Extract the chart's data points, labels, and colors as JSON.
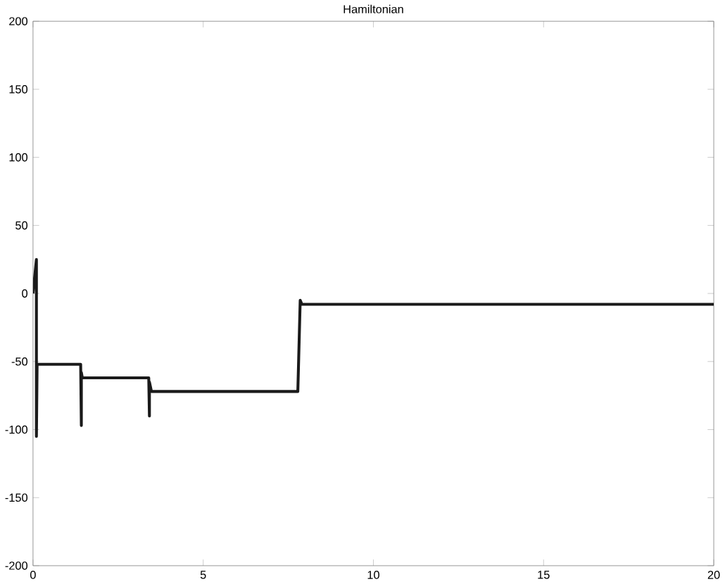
{
  "chart_data": {
    "type": "line",
    "title": "Hamiltonian",
    "x": [
      0,
      0.1,
      0.1,
      0.12,
      0.15,
      1.4,
      1.42,
      1.42,
      1.45,
      3.4,
      3.42,
      3.42,
      3.48,
      7.78,
      7.85,
      7.9,
      20
    ],
    "series": [
      {
        "color": "#1a1a1a",
        "values": [
          0,
          25,
          -105,
          -52,
          -52,
          -52,
          -97,
          -58,
          -62,
          -62,
          -90,
          -65,
          -72,
          -72,
          -5,
          -8,
          -8
        ]
      }
    ],
    "xlim": [
      0,
      20
    ],
    "ylim": [
      -200,
      200
    ],
    "xticks": [
      0,
      5,
      10,
      15,
      20
    ],
    "yticks": [
      -200,
      -150,
      -100,
      -50,
      0,
      50,
      100,
      150,
      200
    ],
    "grid": false,
    "marker": "none",
    "line_style": "solid"
  }
}
